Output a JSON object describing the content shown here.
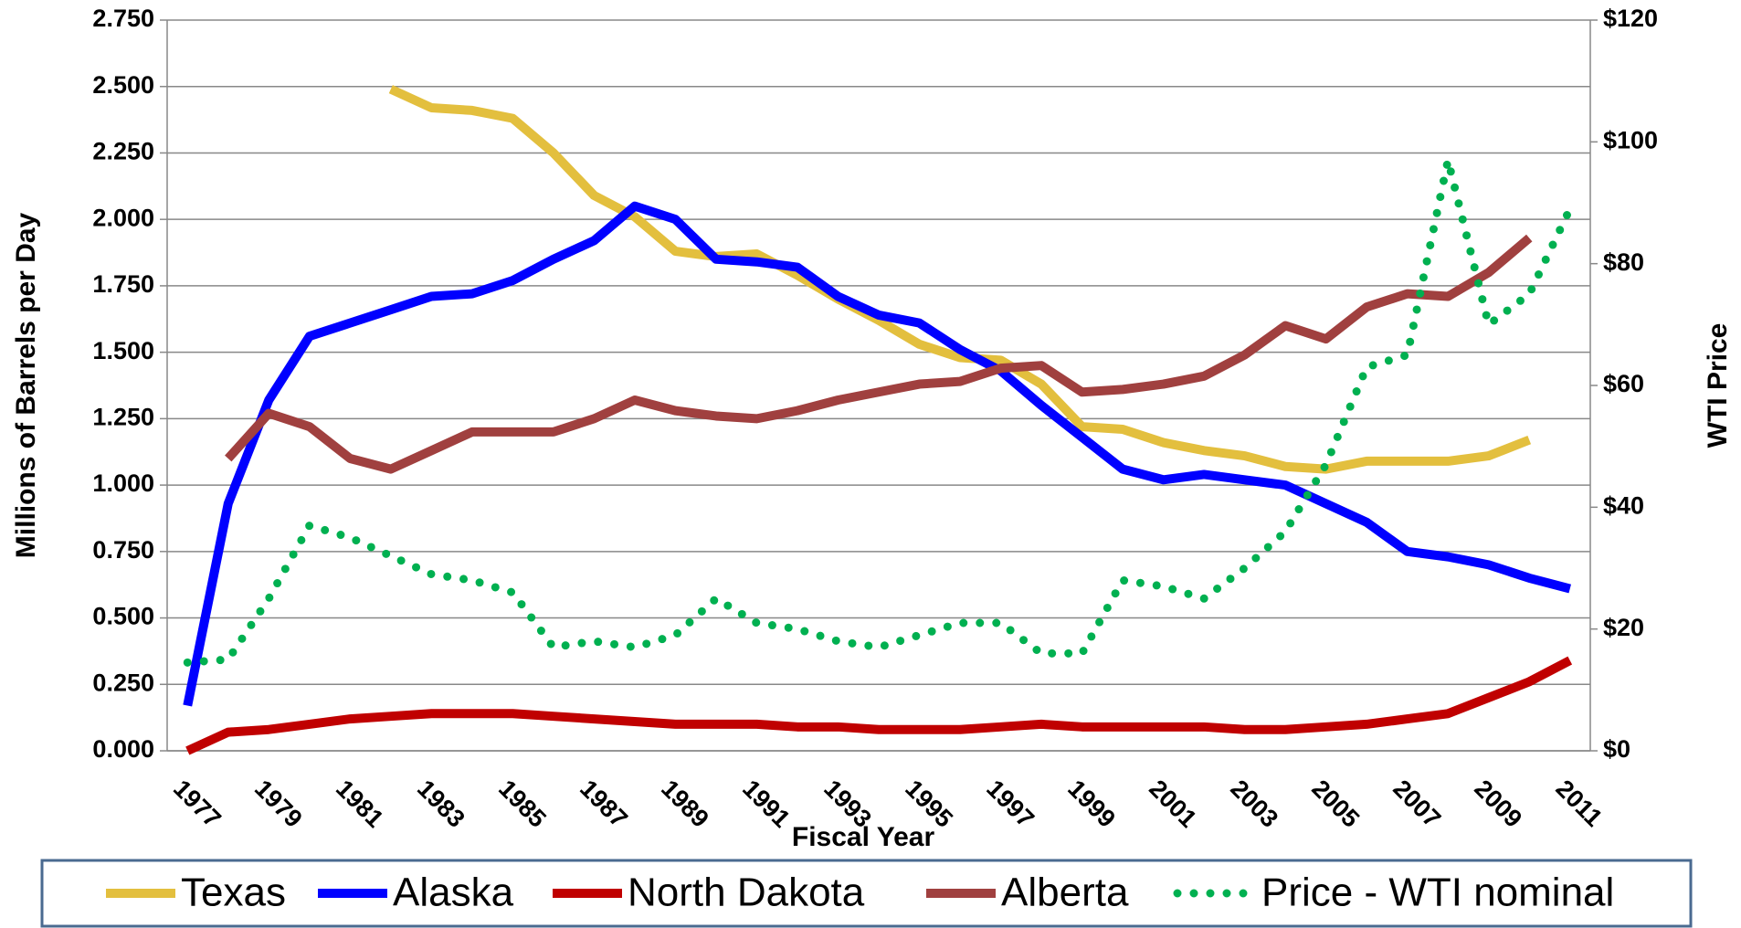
{
  "chart_data": {
    "type": "line",
    "x_label": "Fiscal Year",
    "y_label": "Millions of Barrels per Day",
    "y2_label": "WTI Price",
    "categories": [
      "1977",
      null,
      "1979",
      null,
      "1981",
      null,
      "1983",
      null,
      "1985",
      null,
      "1987",
      null,
      "1989",
      null,
      "1991",
      null,
      "1993",
      null,
      "1995",
      null,
      "1997",
      null,
      "1999",
      null,
      "2001",
      null,
      "2003",
      null,
      "2005",
      null,
      "2007",
      null,
      "2009",
      null,
      "2011"
    ],
    "ylim": [
      0,
      2.75
    ],
    "yticks": [
      {
        "value": 0,
        "label": "0.000"
      },
      {
        "value": 0.25,
        "label": "0.250"
      },
      {
        "value": 0.5,
        "label": "0.500"
      },
      {
        "value": 0.75,
        "label": "0.750"
      },
      {
        "value": 1,
        "label": "1.000"
      },
      {
        "value": 1.25,
        "label": "1.250"
      },
      {
        "value": 1.5,
        "label": "1.500"
      },
      {
        "value": 1.75,
        "label": "1.750"
      },
      {
        "value": 2,
        "label": "2.000"
      },
      {
        "value": 2.25,
        "label": "2.250"
      },
      {
        "value": 2.5,
        "label": "2.500"
      },
      {
        "value": 2.75,
        "label": "2.750"
      }
    ],
    "y2lim": [
      0,
      120
    ],
    "y2ticks": [
      {
        "value": 0,
        "label": "$0"
      },
      {
        "value": 20,
        "label": "$20"
      },
      {
        "value": 40,
        "label": "$40"
      },
      {
        "value": 60,
        "label": "$60"
      },
      {
        "value": 80,
        "label": "$80"
      },
      {
        "value": 100,
        "label": "$100"
      },
      {
        "value": 120,
        "label": "$120"
      }
    ],
    "grid": true,
    "legend": "bottom",
    "series": [
      {
        "name": "Texas",
        "color": "#e3bf3e",
        "values": [
          null,
          null,
          null,
          null,
          null,
          2.49,
          2.42,
          2.41,
          2.38,
          2.25,
          2.09,
          2.01,
          1.88,
          1.86,
          1.87,
          1.79,
          1.7,
          1.62,
          1.53,
          1.48,
          1.47,
          1.38,
          1.22,
          1.21,
          1.16,
          1.13,
          1.11,
          1.07,
          1.06,
          1.09,
          1.09,
          1.09,
          1.11,
          1.17,
          null
        ]
      },
      {
        "name": "Alaska",
        "color": "#0000ff",
        "values": [
          0.17,
          0.93,
          1.32,
          1.56,
          1.61,
          1.66,
          1.71,
          1.72,
          1.77,
          1.85,
          1.92,
          2.05,
          2.0,
          1.85,
          1.84,
          1.82,
          1.71,
          1.64,
          1.61,
          1.51,
          1.43,
          1.3,
          1.18,
          1.06,
          1.02,
          1.04,
          1.02,
          1.0,
          0.93,
          0.86,
          0.75,
          0.73,
          0.7,
          0.65,
          0.61
        ]
      },
      {
        "name": "North Dakota",
        "color": "#c00000",
        "values": [
          0.0,
          0.07,
          0.08,
          0.1,
          0.12,
          0.13,
          0.14,
          0.14,
          0.14,
          0.13,
          0.12,
          0.11,
          0.1,
          0.1,
          0.1,
          0.09,
          0.09,
          0.08,
          0.08,
          0.08,
          0.09,
          0.1,
          0.09,
          0.09,
          0.09,
          0.09,
          0.08,
          0.08,
          0.09,
          0.1,
          0.12,
          0.14,
          0.2,
          0.26,
          0.34
        ]
      },
      {
        "name": "Alberta",
        "color": "#a0403f",
        "values": [
          null,
          1.1,
          1.27,
          1.22,
          1.1,
          1.06,
          1.13,
          1.2,
          1.2,
          1.2,
          1.25,
          1.32,
          1.28,
          1.26,
          1.25,
          1.28,
          1.32,
          1.35,
          1.38,
          1.39,
          1.44,
          1.45,
          1.35,
          1.36,
          1.38,
          1.41,
          1.49,
          1.6,
          1.55,
          1.67,
          1.72,
          1.71,
          1.8,
          1.93,
          null
        ]
      },
      {
        "name": "Price - WTI nominal",
        "color": "#00b050",
        "axis": "y2",
        "dotted": true,
        "values": [
          14.5,
          15,
          25,
          37,
          35,
          32,
          29,
          28,
          26,
          17,
          18,
          17,
          19,
          25,
          21,
          20,
          18,
          17,
          19,
          21,
          21,
          16,
          16,
          28,
          27,
          25,
          30,
          36,
          47,
          63,
          65,
          97,
          70,
          75,
          89
        ]
      }
    ]
  }
}
